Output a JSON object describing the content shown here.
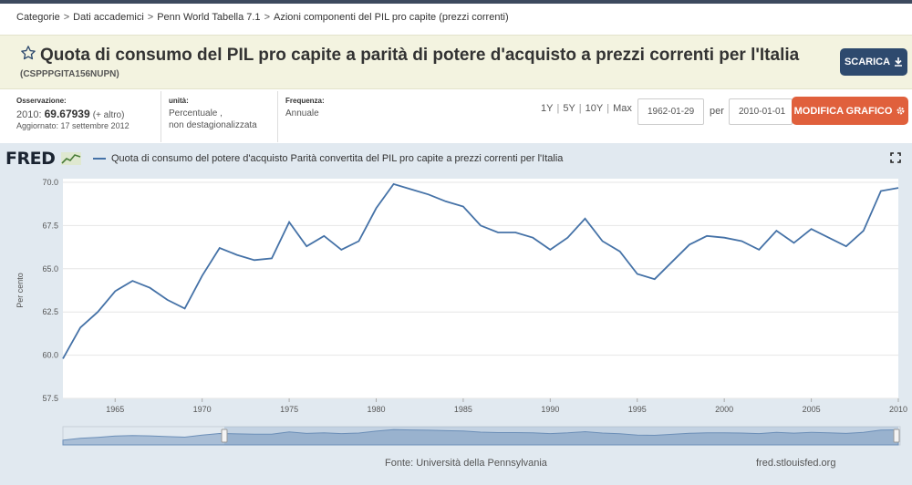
{
  "breadcrumb": [
    "Categorie",
    "Dati accademici",
    "Penn World Tabella 7.1",
    "Azioni componenti del PIL pro capite (prezzi correnti)"
  ],
  "header": {
    "title": "Quota di consumo del PIL pro capite a parità di potere d'acquisto a prezzi correnti per l'Italia",
    "series_id": "(CSPPPGITA156NUPN)",
    "download_label": "SCARICA"
  },
  "meta": {
    "observation_label": "Osservazione:",
    "observation_year": "2010:",
    "observation_value": "69.67939",
    "observation_more": "(+ altro)",
    "updated": "Aggiornato: 17 settembre 2012",
    "units_label": "unità:",
    "units_line1": "Percentuale ,",
    "units_line2": "non destagionalizzata",
    "frequency_label": "Frequenza:",
    "frequency_value": "Annuale"
  },
  "controls": {
    "ranges": [
      "1Y",
      "5Y",
      "10Y",
      "Max"
    ],
    "date_from": "1962-01-29",
    "per_label": "per",
    "date_to": "2010-01-01",
    "edit_label": "MODIFICA GRAFICO"
  },
  "chart_panel": {
    "logo": "FRED",
    "legend": "Quota di consumo del potere d'acquisto Parità convertita del PIL pro capite a prezzi correnti per l'Italia"
  },
  "footer": {
    "source": "Fonte: Università della Pennsylvania",
    "site": "fred.stlouisfed.org"
  },
  "colors": {
    "series": "#4572a7",
    "panel": "#e1e9f0",
    "header_bg": "#f3f3e0",
    "download_btn": "#2e4a6e",
    "edit_btn": "#e0603c"
  },
  "chart_data": {
    "type": "line",
    "title": "",
    "xlabel": "",
    "ylabel": "Per cento",
    "xlim": [
      1962,
      2010
    ],
    "ylim": [
      57.5,
      70.0
    ],
    "yticks": [
      "57.5",
      "60.0",
      "62.5",
      "65.0",
      "67.5",
      "70.0"
    ],
    "xticks": [
      "1965",
      "1970",
      "1975",
      "1980",
      "1985",
      "1990",
      "1995",
      "2000",
      "2005",
      "2010"
    ],
    "grid": true,
    "series": [
      {
        "name": "Quota di consumo del potere d'acquisto Parità convertita del PIL pro capite a prezzi correnti per l'Italia",
        "x": [
          1962,
          1963,
          1964,
          1965,
          1966,
          1967,
          1968,
          1969,
          1970,
          1971,
          1972,
          1973,
          1974,
          1975,
          1976,
          1977,
          1978,
          1979,
          1980,
          1981,
          1982,
          1983,
          1984,
          1985,
          1986,
          1987,
          1988,
          1989,
          1990,
          1991,
          1992,
          1993,
          1994,
          1995,
          1996,
          1997,
          1998,
          1999,
          2000,
          2001,
          2002,
          2003,
          2004,
          2005,
          2006,
          2007,
          2008,
          2009,
          2010
        ],
        "values": [
          59.8,
          61.6,
          62.5,
          63.7,
          64.3,
          63.9,
          63.2,
          62.7,
          64.6,
          66.2,
          65.8,
          65.5,
          65.6,
          67.7,
          66.3,
          66.9,
          66.1,
          66.6,
          68.5,
          69.9,
          69.6,
          69.3,
          68.9,
          68.6,
          67.5,
          67.1,
          67.1,
          66.8,
          66.1,
          66.8,
          67.9,
          66.6,
          66.0,
          64.7,
          64.4,
          65.4,
          66.4,
          66.9,
          66.8,
          66.6,
          66.1,
          67.2,
          66.5,
          67.3,
          66.8,
          66.3,
          67.2,
          69.5,
          69.68
        ]
      }
    ]
  }
}
